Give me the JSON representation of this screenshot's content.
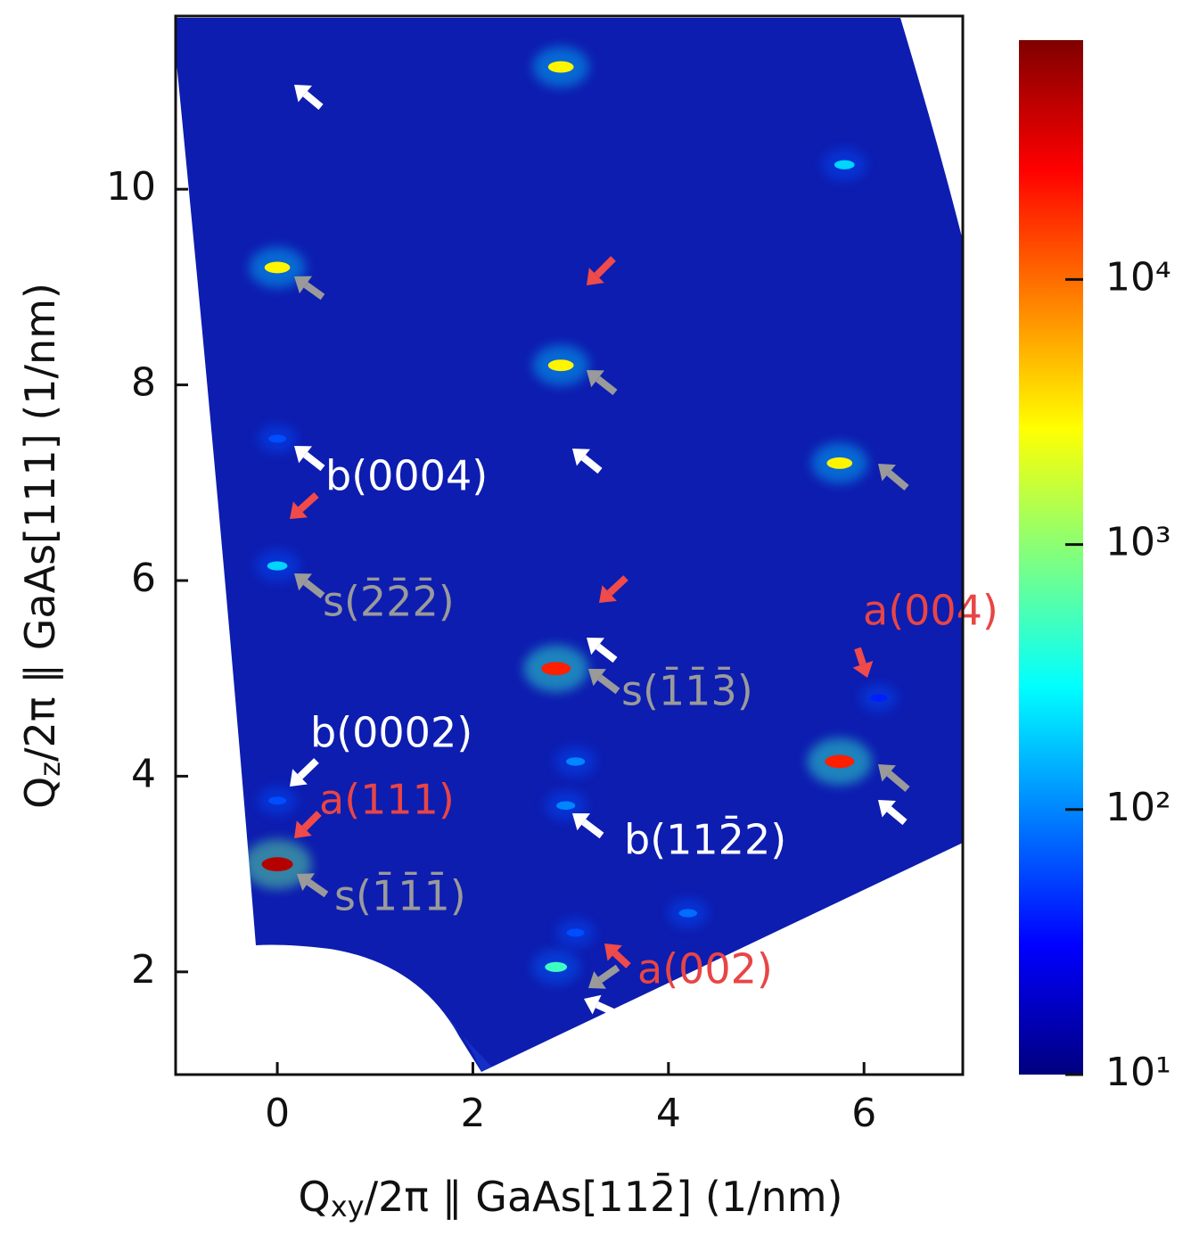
{
  "chart_data": {
    "type": "heatmap",
    "xlabel": [
      "Q",
      "xy",
      "/2π ∥ GaAs[112̄] (1/nm)"
    ],
    "ylabel": [
      "Q",
      "z",
      "/2π ∥ GaAs[111] (1/nm)"
    ],
    "xlim": [
      -1.04,
      7.01
    ],
    "ylim": [
      0.95,
      11.77
    ],
    "xticks": [
      0,
      2,
      4,
      6
    ],
    "yticks": [
      2,
      4,
      6,
      8,
      10
    ],
    "colormap": "jet",
    "color_scale": "log",
    "clim": [
      10,
      80000
    ],
    "cticks": [
      {
        "value": 10,
        "label": "10¹"
      },
      {
        "value": 100,
        "label": "10²"
      },
      {
        "value": 1000,
        "label": "10³"
      },
      {
        "value": 10000,
        "label": "10⁴"
      }
    ],
    "spots": [
      {
        "x": 2.9,
        "y": 11.25,
        "intensity": 3000
      },
      {
        "x": 0.0,
        "y": 9.2,
        "intensity": 3000
      },
      {
        "x": 2.9,
        "y": 8.2,
        "intensity": 3000
      },
      {
        "x": 5.75,
        "y": 7.2,
        "intensity": 3000
      },
      {
        "x": 2.85,
        "y": 5.1,
        "intensity": 20000
      },
      {
        "x": 5.75,
        "y": 4.15,
        "intensity": 20000
      },
      {
        "x": 0.0,
        "y": 3.1,
        "intensity": 50000
      },
      {
        "x": 2.85,
        "y": 2.05,
        "intensity": 500
      },
      {
        "x": 5.8,
        "y": 10.25,
        "intensity": 200
      },
      {
        "x": 0.0,
        "y": 6.15,
        "intensity": 200
      },
      {
        "x": 0.0,
        "y": 7.45,
        "intensity": 60
      },
      {
        "x": 3.05,
        "y": 4.15,
        "intensity": 100
      },
      {
        "x": 2.95,
        "y": 3.7,
        "intensity": 100
      },
      {
        "x": 4.2,
        "y": 2.6,
        "intensity": 80
      },
      {
        "x": 0.0,
        "y": 3.75,
        "intensity": 60
      },
      {
        "x": 3.05,
        "y": 2.4,
        "intensity": 60
      },
      {
        "x": 6.15,
        "y": 4.8,
        "intensity": 40
      }
    ],
    "annotations": [
      {
        "text": "b(0004)",
        "color": "#ffffff"
      },
      {
        "text": "s(2̄2̄2̄)",
        "color": "#9a9a9a"
      },
      {
        "text": "a(004)",
        "color": "#e84545"
      },
      {
        "text": "s(1̄1̄3̄)",
        "color": "#9a9a9a"
      },
      {
        "text": "b(0002)",
        "color": "#ffffff"
      },
      {
        "text": "a(111)",
        "color": "#e84545"
      },
      {
        "text": "b(112̄2)",
        "color": "#ffffff"
      },
      {
        "text": "s(1̄1̄1̄)",
        "color": "#9a9a9a"
      },
      {
        "text": "a(002)",
        "color": "#e84545"
      }
    ]
  }
}
